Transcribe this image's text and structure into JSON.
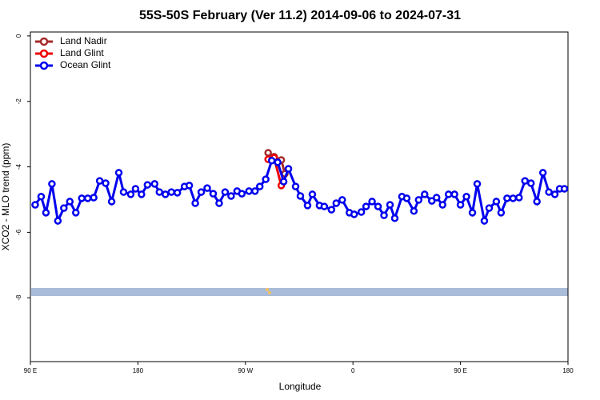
{
  "chart_data": {
    "type": "line",
    "title": "55S-50S February (Ver 11.2)   2014-09-06 to 2024-07-31",
    "x_label": "Longitude",
    "y_label": "XCO2 - MLO trend (ppm)",
    "xlim": [
      90,
      540
    ],
    "ylim": [
      -9.95,
      0.12
    ],
    "xticks": [
      {
        "value": 90,
        "label": "90 E"
      },
      180,
      {
        "value": 270,
        "label": "90 W"
      },
      {
        "value": 360,
        "label": "0"
      },
      {
        "value": 450,
        "label": "90 E"
      },
      180
    ],
    "yticks": [
      0,
      -2,
      -4,
      -6,
      -8
    ],
    "legend": "top-left",
    "series": [
      {
        "name": "Land Nadir",
        "color": "#a52a2a",
        "x": [
          289,
          294,
          300,
          303
        ],
        "values": [
          -3.57,
          -3.69,
          -3.79,
          -4.21
        ]
      },
      {
        "name": "Land Glint",
        "color": "#ee0000",
        "x": [
          289,
          294,
          300
        ],
        "values": [
          -3.77,
          -3.72,
          -4.57
        ]
      },
      {
        "name": "Ocean Glint",
        "color": "#0000ee",
        "x": [
          94,
          99,
          103,
          108,
          113,
          118,
          123,
          128,
          133,
          138,
          143,
          148,
          153,
          158,
          164,
          168,
          174,
          178,
          183,
          188,
          194,
          198,
          203,
          208,
          213,
          219,
          223,
          228,
          233,
          238,
          243,
          248,
          253,
          258,
          263,
          267,
          273,
          278,
          282,
          287,
          292,
          297,
          302,
          306,
          312,
          316,
          322,
          326,
          332,
          336,
          342,
          346,
          351,
          357,
          361,
          367,
          371,
          376,
          381,
          386,
          391,
          395,
          401,
          405,
          411,
          415,
          420,
          426,
          430,
          435,
          440,
          445,
          450,
          455,
          460,
          464,
          470,
          474,
          480,
          484,
          489,
          494,
          499,
          504,
          509,
          514,
          519,
          524,
          529,
          533,
          537
        ],
        "values": [
          -5.16,
          -4.91,
          -5.4,
          -4.52,
          -5.65,
          -5.26,
          -5.06,
          -5.4,
          -4.96,
          -4.96,
          -4.94,
          -4.43,
          -4.5,
          -5.06,
          -4.18,
          -4.77,
          -4.84,
          -4.67,
          -4.84,
          -4.55,
          -4.52,
          -4.77,
          -4.84,
          -4.77,
          -4.79,
          -4.6,
          -4.57,
          -5.11,
          -4.77,
          -4.65,
          -4.82,
          -5.11,
          -4.77,
          -4.89,
          -4.74,
          -4.82,
          -4.74,
          -4.74,
          -4.6,
          -4.38,
          -3.81,
          -3.86,
          -4.45,
          -4.06,
          -4.6,
          -4.89,
          -5.18,
          -4.84,
          -5.18,
          -5.21,
          -5.31,
          -5.11,
          -5.01,
          -5.4,
          -5.45,
          -5.38,
          -5.21,
          -5.06,
          -5.21,
          -5.48,
          -5.16,
          -5.57,
          -4.91,
          -4.96,
          -5.35,
          -5.01,
          -4.84,
          -5.04,
          -4.94,
          -5.16,
          -4.84,
          -4.84,
          -5.16,
          -4.91,
          -5.4,
          -4.52,
          -5.65,
          -5.26,
          -5.06,
          -5.4,
          -4.96,
          -4.96,
          -4.94,
          -4.43,
          -4.5,
          -5.06,
          -4.18,
          -4.77,
          -4.84,
          -4.67,
          -4.67
        ]
      }
    ]
  }
}
